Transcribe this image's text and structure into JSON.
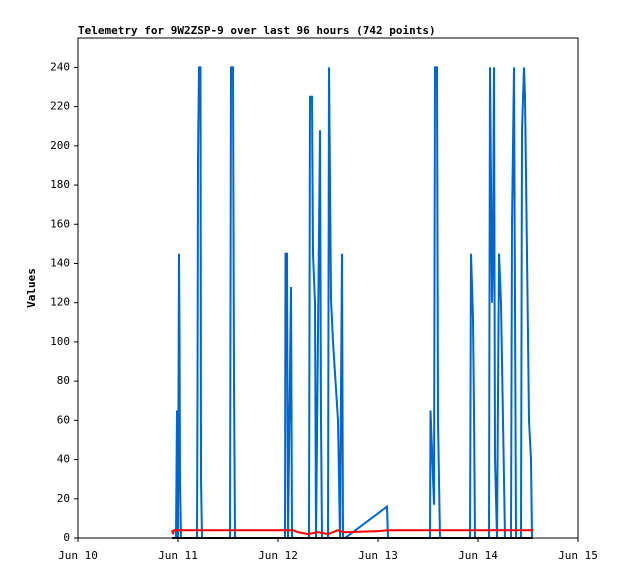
{
  "chart_data": {
    "type": "line",
    "title": "Telemetry for 9W2ZSP-9 over last 96 hours (742 points)",
    "y_label": "Values",
    "xlim": [
      0,
      5
    ],
    "xticks": [
      {
        "value": 0,
        "label": "Jun 10"
      },
      {
        "value": 1,
        "label": "Jun 11"
      },
      {
        "value": 2,
        "label": "Jun 12"
      },
      {
        "value": 3,
        "label": "Jun 13"
      },
      {
        "value": 4,
        "label": "Jun 14"
      },
      {
        "value": 5,
        "label": "Jun 15"
      }
    ],
    "ylim": [
      0,
      255
    ],
    "yticks": [
      0,
      20,
      40,
      60,
      80,
      100,
      120,
      140,
      160,
      180,
      200,
      220,
      240
    ],
    "series": [
      {
        "color": "#0066cc",
        "x": [
          0.94,
          0.98,
          0.99,
          1.0,
          1.01,
          1.015,
          1.02,
          1.03,
          1.19,
          1.195,
          1.2,
          1.21,
          1.225,
          1.23,
          1.24,
          1.52,
          1.53,
          1.55,
          1.56,
          1.57,
          2.07,
          2.075,
          2.09,
          2.095,
          2.1,
          2.13,
          2.14,
          2.31,
          2.32,
          2.34,
          2.35,
          2.37,
          2.38,
          2.42,
          2.43,
          2.44,
          2.5,
          2.51,
          2.53,
          2.55,
          2.6,
          2.62,
          2.64,
          2.65,
          2.67,
          3.09,
          3.1,
          3.52,
          3.525,
          3.56,
          3.57,
          3.59,
          3.6,
          3.62,
          3.92,
          3.93,
          3.95,
          3.96,
          3.97,
          4.11,
          4.12,
          4.14,
          4.15,
          4.16,
          4.17,
          4.19,
          4.21,
          4.23,
          4.25,
          4.27,
          4.33,
          4.34,
          4.36,
          4.38,
          4.43,
          4.44,
          4.46,
          4.47,
          4.49,
          4.51,
          4.53,
          4.54
        ],
        "values": [
          0,
          0,
          65,
          0,
          145,
          105,
          30,
          0,
          0,
          72,
          193,
          240,
          240,
          30,
          0,
          0,
          240,
          240,
          80,
          0,
          0,
          145,
          145,
          65,
          0,
          128,
          0,
          0,
          225,
          225,
          145,
          120,
          0,
          208,
          60,
          0,
          0,
          240,
          122,
          100,
          60,
          0,
          145,
          0,
          0,
          16,
          0,
          0,
          65,
          17,
          240,
          240,
          60,
          0,
          0,
          145,
          112,
          65,
          0,
          0,
          240,
          120,
          145,
          240,
          40,
          0,
          145,
          120,
          60,
          0,
          0,
          160,
          240,
          0,
          0,
          208,
          240,
          225,
          145,
          60,
          40,
          0
        ]
      },
      {
        "color": "#ff0000",
        "x": [
          0.94,
          0.95,
          0.96,
          2.15,
          2.2,
          2.3,
          2.4,
          2.5,
          2.6,
          2.65,
          2.7,
          3.0,
          3.1,
          4.55
        ],
        "values": [
          4,
          2,
          4,
          4,
          3,
          2,
          3,
          2,
          4,
          3,
          3,
          3.5,
          4,
          4
        ]
      },
      {
        "color": "#000000",
        "x": [
          0.94,
          4.55
        ],
        "values": [
          0,
          0
        ]
      }
    ]
  }
}
